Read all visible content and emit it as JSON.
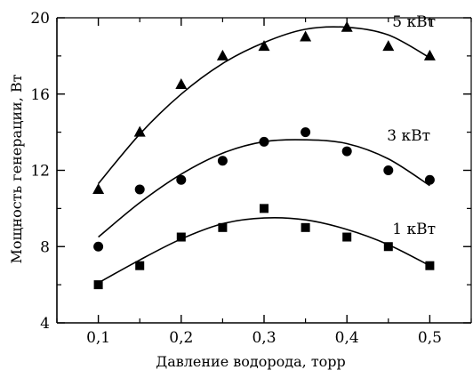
{
  "chart_data": {
    "type": "scatter",
    "xlabel": "Давление водорода, торр",
    "ylabel": "Мощность генерации, Вт",
    "xlim": [
      0.05,
      0.55
    ],
    "ylim": [
      4,
      20
    ],
    "x_ticks": [
      0.1,
      0.2,
      0.3,
      0.4,
      0.5
    ],
    "x_tick_labels": [
      "0,1",
      "0,2",
      "0,3",
      "0,4",
      "0,5"
    ],
    "y_ticks": [
      4,
      8,
      12,
      16,
      20
    ],
    "y_tick_labels": [
      "4",
      "8",
      "12",
      "16",
      "20"
    ],
    "grid": false,
    "series": [
      {
        "name": "5 кВт",
        "marker": "triangle",
        "x": [
          0.1,
          0.15,
          0.2,
          0.25,
          0.3,
          0.35,
          0.4,
          0.45,
          0.5
        ],
        "values": [
          11.0,
          14.0,
          16.5,
          18.0,
          18.5,
          19.0,
          19.5,
          18.5,
          18.0
        ],
        "fit": [
          11.3,
          13.9,
          16.0,
          17.6,
          18.7,
          19.4,
          19.5,
          19.1,
          17.9
        ]
      },
      {
        "name": "3 кВт",
        "marker": "circle",
        "x": [
          0.1,
          0.15,
          0.2,
          0.25,
          0.3,
          0.35,
          0.4,
          0.45,
          0.5
        ],
        "values": [
          8.0,
          11.0,
          11.5,
          12.5,
          13.5,
          14.0,
          13.0,
          12.0,
          11.5
        ],
        "fit": [
          8.5,
          10.3,
          11.8,
          12.9,
          13.5,
          13.6,
          13.4,
          12.6,
          11.2
        ]
      },
      {
        "name": "1 кВт",
        "marker": "square",
        "x": [
          0.1,
          0.15,
          0.2,
          0.25,
          0.3,
          0.35,
          0.4,
          0.45,
          0.5
        ],
        "values": [
          6.0,
          7.0,
          8.5,
          9.0,
          10.0,
          9.0,
          8.5,
          8.0,
          7.0
        ],
        "fit": [
          6.1,
          7.3,
          8.4,
          9.2,
          9.5,
          9.4,
          8.9,
          8.1,
          7.0
        ]
      }
    ]
  }
}
